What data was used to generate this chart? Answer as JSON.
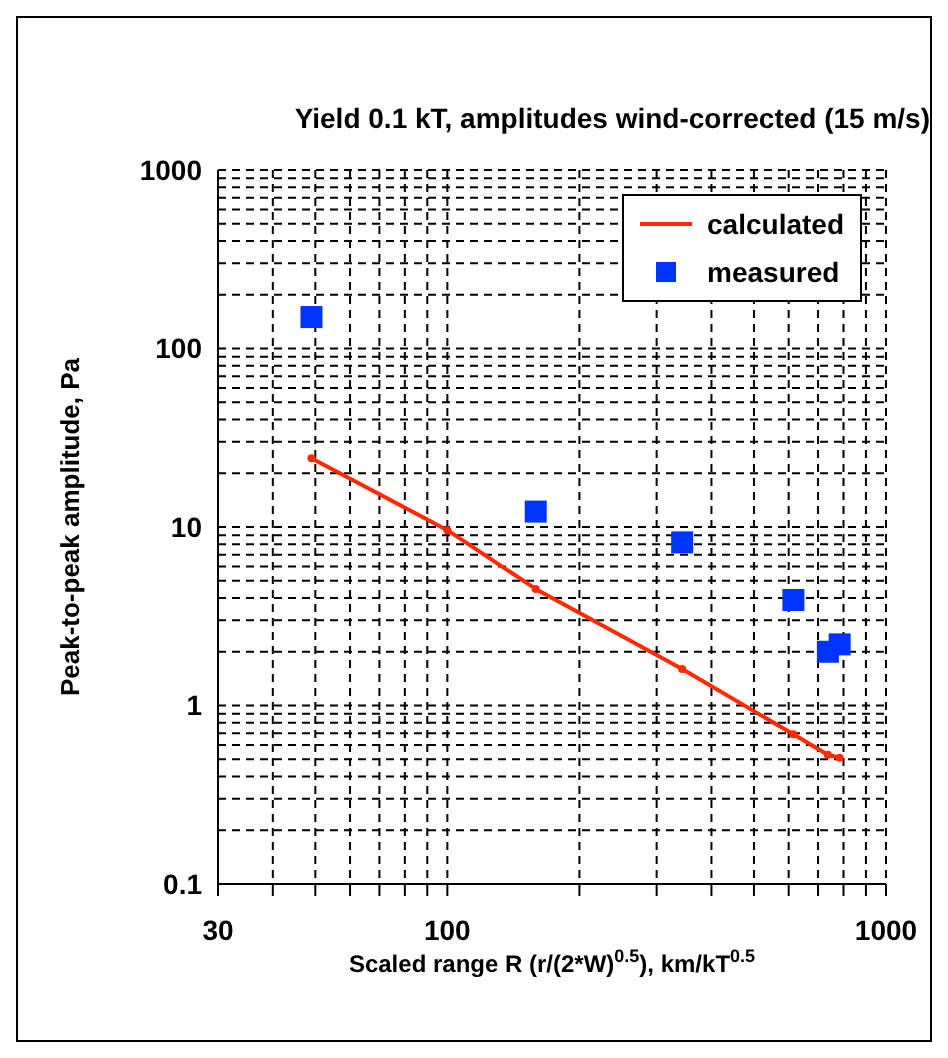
{
  "chart_data": {
    "type": "scatter",
    "title": "Yield 0.1 kT, amplitudes wind-corrected (15 m/s)",
    "xlabel": "Scaled range R (r/(2*W)$^{0.5}$), km/kT$^{0.5}$",
    "ylabel": "Peak-to-peak amplitude, Pa",
    "log": "xy",
    "grid": true,
    "legend": "top right",
    "xlim": [
      30,
      1000
    ],
    "xticks": [
      30,
      {
        "value": 40,
        "label": null
      },
      {
        "value": 50,
        "label": null
      },
      {
        "value": 60,
        "label": null
      },
      {
        "value": 70,
        "label": null
      },
      {
        "value": 80,
        "label": null
      },
      {
        "value": 90,
        "label": null
      },
      100,
      {
        "value": 200,
        "label": null
      },
      {
        "value": 300,
        "label": null
      },
      {
        "value": 400,
        "label": null
      },
      {
        "value": 500,
        "label": null
      },
      {
        "value": 600,
        "label": null
      },
      {
        "value": 700,
        "label": null
      },
      {
        "value": 800,
        "label": null
      },
      {
        "value": 900,
        "label": null
      },
      1000
    ],
    "ylim": [
      0.1,
      1000
    ],
    "yticks": [
      0.1,
      {
        "value": 0.2,
        "label": null
      },
      {
        "value": 0.3,
        "label": null
      },
      {
        "value": 0.4,
        "label": null
      },
      {
        "value": 0.5,
        "label": null
      },
      {
        "value": 0.6,
        "label": null
      },
      {
        "value": 0.7,
        "label": null
      },
      {
        "value": 0.8,
        "label": null
      },
      {
        "value": 0.9,
        "label": null
      },
      1,
      {
        "value": 2,
        "label": null
      },
      {
        "value": 3,
        "label": null
      },
      {
        "value": 4,
        "label": null
      },
      {
        "value": 5,
        "label": null
      },
      {
        "value": 6,
        "label": null
      },
      {
        "value": 7,
        "label": null
      },
      {
        "value": 8,
        "label": null
      },
      {
        "value": 9,
        "label": null
      },
      10,
      {
        "value": 20,
        "label": null
      },
      {
        "value": 30,
        "label": null
      },
      {
        "value": 40,
        "label": null
      },
      {
        "value": 50,
        "label": null
      },
      {
        "value": 60,
        "label": null
      },
      {
        "value": 70,
        "label": null
      },
      {
        "value": 80,
        "label": null
      },
      {
        "value": 90,
        "label": null
      },
      100,
      {
        "value": 200,
        "label": null
      },
      {
        "value": 300,
        "label": null
      },
      {
        "value": 400,
        "label": null
      },
      {
        "value": 500,
        "label": null
      },
      {
        "value": 600,
        "label": null
      },
      {
        "value": 700,
        "label": null
      },
      {
        "value": 800,
        "label": null
      },
      {
        "value": 900,
        "label": null
      },
      1000
    ],
    "series": [
      {
        "name": "calculated",
        "type": "line",
        "color": "#ff2a00",
        "marker": "circle",
        "line_style": "solid",
        "x": [
          49,
          100,
          159,
          343,
          615,
          737,
          784
        ],
        "values": [
          24.3,
          9.6,
          4.5,
          1.6,
          0.69,
          0.53,
          0.51
        ]
      },
      {
        "name": "measured",
        "type": "scatter",
        "color": "#0033ff",
        "marker": "square",
        "x": [
          49,
          159,
          343,
          615,
          737,
          784
        ],
        "values": [
          150,
          12.2,
          8.2,
          3.9,
          2.0,
          2.2
        ]
      }
    ]
  }
}
